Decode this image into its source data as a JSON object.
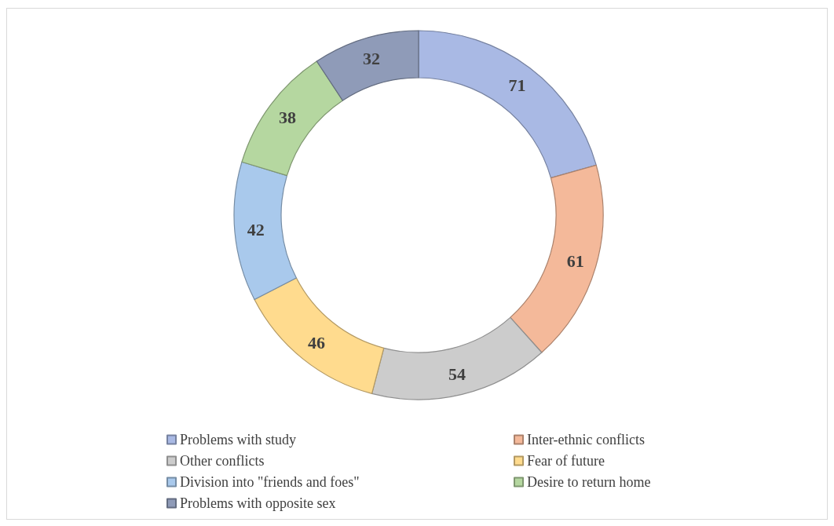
{
  "chart_data": {
    "type": "donut",
    "categories": [
      "Problems with study",
      "Inter-ethnic conflicts",
      "Other conflicts",
      "Fear of future",
      "Division into \"friends and foes\"",
      "Desire to return home",
      "Problems with opposite sex"
    ],
    "values": [
      71,
      61,
      54,
      46,
      42,
      38,
      32
    ],
    "colors": [
      "#a9b9e4",
      "#f4b99a",
      "#cccccc",
      "#ffdb8e",
      "#a9c9ec",
      "#b5d7a0",
      "#8f9bb8"
    ],
    "data_labels": true,
    "legend": "bottom"
  }
}
